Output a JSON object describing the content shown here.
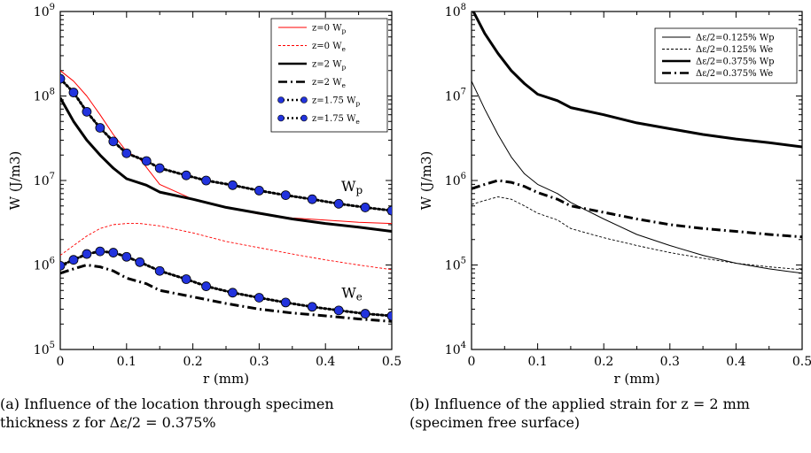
{
  "chart_data": [
    {
      "type": "line",
      "xlabel": "r (mm)",
      "ylabel": "W (J/m3)",
      "yscale": "log",
      "xlim": [
        0,
        0.5
      ],
      "ylim": [
        100000,
        1000000000
      ],
      "x_ticks": [
        "0",
        "0.1",
        "0.2",
        "0.3",
        "0.4",
        "0.5"
      ],
      "y_ticks": [
        {
          "base": "10",
          "exp": "5"
        },
        {
          "base": "10",
          "exp": "6"
        },
        {
          "base": "10",
          "exp": "7"
        },
        {
          "base": "10",
          "exp": "8"
        },
        {
          "base": "10",
          "exp": "9"
        }
      ],
      "legend_position": "top-right",
      "annotations": [
        {
          "text": "W",
          "sub": "p",
          "x": 0.44,
          "y": 7500000
        },
        {
          "text": "W",
          "sub": "e",
          "x": 0.44,
          "y": 410000
        }
      ],
      "caption": "(a) Influence of the location through specimen thickness z for Δε/2 = 0.375%",
      "series": [
        {
          "name": "z=0 Wp",
          "legend": "z=0 W",
          "sub": "p",
          "style": "thin-solid",
          "color": "#ff0000",
          "x": [
            0,
            0.02,
            0.04,
            0.06,
            0.08,
            0.1,
            0.12,
            0.15,
            0.2,
            0.25,
            0.3,
            0.35,
            0.4,
            0.45,
            0.5
          ],
          "y": [
            200000000,
            150000000,
            100000000,
            60000000,
            35000000,
            22000000,
            18000000,
            9000000,
            6000000,
            4800000,
            4000000,
            3600000,
            3400000,
            3200000,
            3100000
          ]
        },
        {
          "name": "z=0 We",
          "legend": "z=0 W",
          "sub": "e",
          "style": "thin-dashed",
          "color": "#ff0000",
          "x": [
            0,
            0.02,
            0.04,
            0.06,
            0.08,
            0.1,
            0.12,
            0.15,
            0.2,
            0.25,
            0.3,
            0.35,
            0.4,
            0.45,
            0.5
          ],
          "y": [
            1300000,
            1700000,
            2200000,
            2700000,
            3000000,
            3100000,
            3100000,
            2900000,
            2400000,
            1900000,
            1600000,
            1350000,
            1150000,
            1000000,
            880000
          ]
        },
        {
          "name": "z=2 Wp",
          "legend": "z=2 W",
          "sub": "p",
          "style": "thick-solid",
          "color": "#000000",
          "x": [
            0,
            0.02,
            0.04,
            0.06,
            0.08,
            0.1,
            0.13,
            0.15,
            0.2,
            0.25,
            0.3,
            0.35,
            0.4,
            0.45,
            0.5
          ],
          "y": [
            95000000,
            50000000,
            30000000,
            20000000,
            14000000,
            10500000,
            8800000,
            7300000,
            6000000,
            4800000,
            4100000,
            3500000,
            3100000,
            2800000,
            2500000
          ]
        },
        {
          "name": "z=2 We",
          "legend": "z=2 W",
          "sub": "e",
          "style": "thick-dashdot",
          "color": "#000000",
          "x": [
            0,
            0.02,
            0.04,
            0.06,
            0.08,
            0.1,
            0.13,
            0.15,
            0.2,
            0.25,
            0.3,
            0.35,
            0.4,
            0.45,
            0.5
          ],
          "y": [
            800000,
            900000,
            1000000,
            950000,
            850000,
            700000,
            600000,
            500000,
            420000,
            350000,
            300000,
            270000,
            250000,
            230000,
            215000
          ]
        },
        {
          "name": "z=1.75 Wp",
          "legend": "z=1.75 W",
          "sub": "p",
          "style": "thick-dotted-markers",
          "color": "#000000",
          "marker_color": "#2233dd",
          "x": [
            0,
            0.02,
            0.04,
            0.06,
            0.08,
            0.1,
            0.13,
            0.15,
            0.19,
            0.22,
            0.26,
            0.3,
            0.34,
            0.38,
            0.42,
            0.46,
            0.5
          ],
          "y": [
            160000000,
            110000000,
            65000000,
            42000000,
            29000000,
            21000000,
            17000000,
            14000000,
            11500000,
            10000000,
            8800000,
            7600000,
            6700000,
            6000000,
            5300000,
            4800000,
            4400000
          ]
        },
        {
          "name": "z=1.75 We",
          "legend": "z=1.75 W",
          "sub": "e",
          "style": "thick-dotted-markers",
          "color": "#000000",
          "marker_color": "#2233dd",
          "x": [
            0,
            0.02,
            0.04,
            0.06,
            0.08,
            0.1,
            0.12,
            0.15,
            0.19,
            0.22,
            0.26,
            0.3,
            0.34,
            0.38,
            0.42,
            0.46,
            0.5
          ],
          "y": [
            980000,
            1150000,
            1350000,
            1450000,
            1400000,
            1250000,
            1080000,
            850000,
            680000,
            560000,
            470000,
            410000,
            360000,
            320000,
            290000,
            265000,
            250000
          ]
        }
      ]
    },
    {
      "type": "line",
      "xlabel": "r (mm)",
      "ylabel": "W (J/m3)",
      "yscale": "log",
      "xlim": [
        0,
        0.5
      ],
      "ylim": [
        10000,
        100000000
      ],
      "x_ticks": [
        "0",
        "0.1",
        "0.2",
        "0.3",
        "0.4",
        "0.5"
      ],
      "y_ticks": [
        {
          "base": "10",
          "exp": "4"
        },
        {
          "base": "10",
          "exp": "5"
        },
        {
          "base": "10",
          "exp": "6"
        },
        {
          "base": "10",
          "exp": "7"
        },
        {
          "base": "10",
          "exp": "8"
        }
      ],
      "legend_position": "top-right",
      "caption": "(b) Influence of the applied strain for z = 2 mm (specimen free surface)",
      "series": [
        {
          "name": "Δε/2=0.125% Wp",
          "legend": "Δε/2=0.125% Wp",
          "style": "thin-solid",
          "color": "#000000",
          "x": [
            0,
            0.02,
            0.04,
            0.06,
            0.08,
            0.1,
            0.13,
            0.15,
            0.2,
            0.25,
            0.3,
            0.35,
            0.4,
            0.45,
            0.5
          ],
          "y": [
            15000000,
            7000000,
            3500000,
            1900000,
            1200000,
            900000,
            700000,
            550000,
            350000,
            230000,
            170000,
            130000,
            105000,
            90000,
            80000
          ]
        },
        {
          "name": "Δε/2=0.125% We",
          "legend": "Δε/2=0.125% We",
          "style": "thin-dashed",
          "color": "#000000",
          "x": [
            0,
            0.02,
            0.04,
            0.06,
            0.08,
            0.1,
            0.13,
            0.15,
            0.2,
            0.25,
            0.3,
            0.35,
            0.4,
            0.45,
            0.5
          ],
          "y": [
            520000,
            580000,
            640000,
            600000,
            500000,
            410000,
            340000,
            270000,
            210000,
            170000,
            140000,
            120000,
            105000,
            95000,
            88000
          ]
        },
        {
          "name": "Δε/2=0.375% Wp",
          "legend": "Δε/2=0.375% Wp",
          "style": "thick-solid",
          "color": "#000000",
          "x": [
            0,
            0.02,
            0.04,
            0.06,
            0.08,
            0.1,
            0.13,
            0.15,
            0.2,
            0.25,
            0.3,
            0.35,
            0.4,
            0.45,
            0.5
          ],
          "y": [
            110000000,
            55000000,
            32000000,
            20000000,
            14000000,
            10500000,
            8800000,
            7300000,
            6000000,
            4800000,
            4100000,
            3500000,
            3100000,
            2800000,
            2500000
          ]
        },
        {
          "name": "Δε/2=0.375% We",
          "legend": "Δε/2=0.375% We",
          "style": "thick-dashdot",
          "color": "#000000",
          "x": [
            0,
            0.02,
            0.04,
            0.06,
            0.08,
            0.1,
            0.13,
            0.15,
            0.2,
            0.25,
            0.3,
            0.35,
            0.4,
            0.45,
            0.5
          ],
          "y": [
            800000,
            900000,
            1000000,
            950000,
            850000,
            720000,
            600000,
            500000,
            420000,
            350000,
            300000,
            270000,
            250000,
            230000,
            215000
          ]
        }
      ]
    }
  ]
}
